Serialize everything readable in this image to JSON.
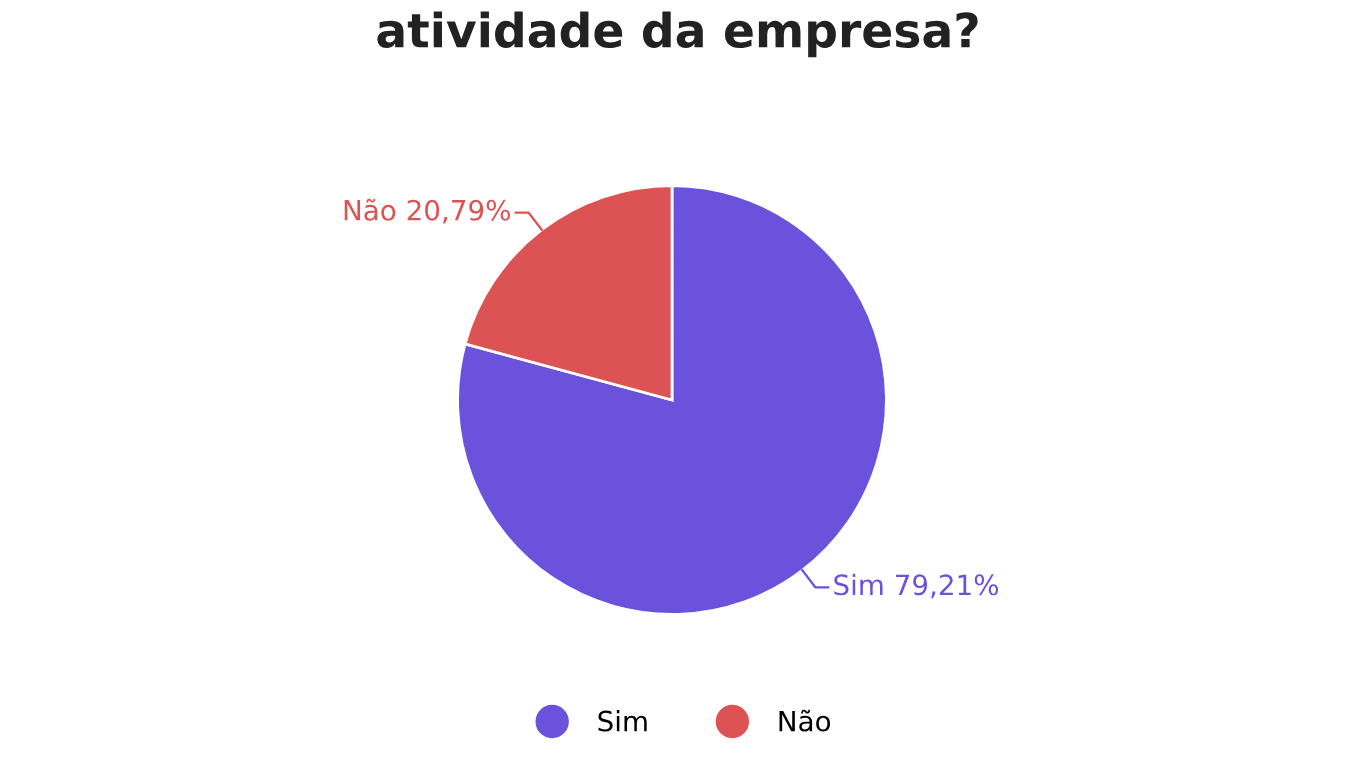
{
  "chart_data": {
    "type": "pie",
    "title": "atividade da empresa?",
    "categories": [
      "Sim",
      "Não"
    ],
    "values": [
      79.21,
      20.79
    ],
    "value_labels": [
      "79,21%",
      "20,79%"
    ],
    "colors": [
      "#6b52dc",
      "#dd5353"
    ],
    "legend": "bottom"
  }
}
